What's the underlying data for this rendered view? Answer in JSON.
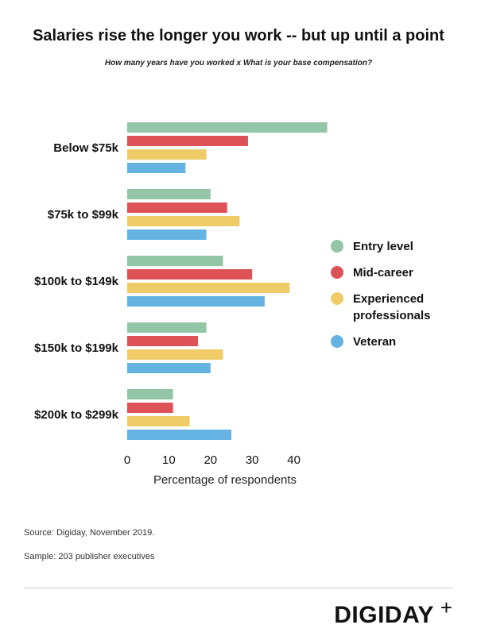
{
  "title": "Salaries rise the longer you work -- but up until a point",
  "subtitle": "How many years have you worked x What is your base compensation?",
  "chart_data": {
    "type": "bar",
    "orientation": "horizontal",
    "categories": [
      "Below $75k",
      "$75k to $99k",
      "$100k to $149k",
      "$150k to $199k",
      "$200k to $299k"
    ],
    "series": [
      {
        "name": "Entry level",
        "color": "#93c6a6",
        "values": [
          48,
          20,
          23,
          19,
          11
        ]
      },
      {
        "name": "Mid-career",
        "color": "#dd5257",
        "values": [
          29,
          24,
          30,
          17,
          11
        ]
      },
      {
        "name": "Experienced professionals",
        "color": "#efcc68",
        "values": [
          19,
          27,
          39,
          23,
          15
        ]
      },
      {
        "name": "Veteran",
        "color": "#64b3e2",
        "values": [
          14,
          19,
          33,
          20,
          25
        ]
      }
    ],
    "xlabel": "Percentage of respondents",
    "ylabel": "",
    "xlim": [
      0,
      50
    ],
    "xticks": [
      "0",
      "10",
      "20",
      "30",
      "40"
    ],
    "grid": false,
    "legend_position": "right"
  },
  "footer": {
    "source": "Source:  Digiday, November 2019.",
    "sample": "Sample: 203 publisher executives"
  },
  "logo": {
    "text": "DIGIDAY",
    "plus": "+"
  }
}
